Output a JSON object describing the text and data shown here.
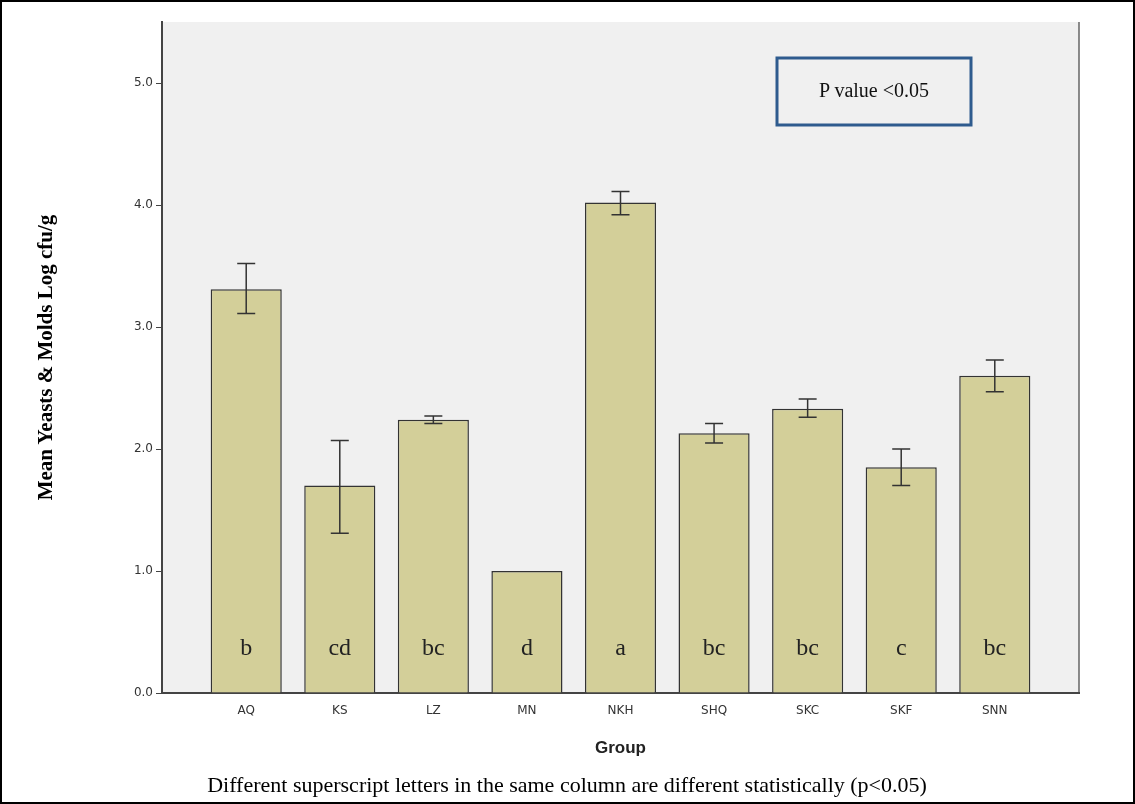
{
  "chart_data": {
    "type": "bar",
    "xlabel": "Group",
    "ylabel": "Mean Yeasts & Molds Log cfu/g",
    "categories": [
      "AQ",
      "KS",
      "LZ",
      "MN",
      "NKH",
      "SHQ",
      "SKC",
      "SKF",
      "SNN"
    ],
    "values": [
      3.31,
      1.7,
      2.24,
      1.0,
      4.02,
      2.13,
      2.33,
      1.85,
      2.6
    ],
    "errors": [
      [
        3.11,
        3.52
      ],
      [
        1.31,
        2.07
      ],
      [
        2.21,
        2.27
      ],
      null,
      [
        3.92,
        4.11
      ],
      [
        2.05,
        2.21
      ],
      [
        2.26,
        2.41
      ],
      [
        1.7,
        2.0
      ],
      [
        2.47,
        2.73
      ]
    ],
    "color": "#d3cf99",
    "ylim": [
      0,
      5.5
    ],
    "yticks": [
      {
        "value": 0,
        "label": "0.0"
      },
      {
        "value": 1,
        "label": "1.0"
      },
      {
        "value": 2,
        "label": "2.0"
      },
      {
        "value": 3,
        "label": "3.0"
      },
      {
        "value": 4,
        "label": "4.0"
      },
      {
        "value": 5,
        "label": "5.0"
      }
    ],
    "grid": false,
    "legend": false,
    "value_labels": [
      "b",
      "cd",
      "bc",
      "d",
      "a",
      "bc",
      "bc",
      "c",
      "bc"
    ],
    "annotations": [
      "P value <0.05",
      "Different superscript letters in the same column are different statistically (p<0.05)"
    ]
  }
}
